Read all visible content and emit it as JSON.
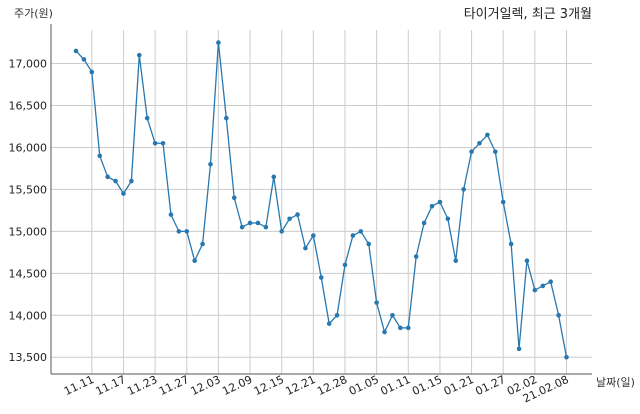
{
  "chart_data": {
    "type": "line",
    "title": "타이거일렉, 최근 3개월",
    "ylabel": "주가(원)",
    "xlabel": "날짜(일)",
    "ylim": [
      13300,
      17400
    ],
    "yticks": [
      13500,
      14000,
      14500,
      15000,
      15500,
      16000,
      16500,
      17000
    ],
    "ytick_labels": [
      "13,500",
      "14,000",
      "14,500",
      "15,000",
      "15,500",
      "16,000",
      "16,500",
      "17,000"
    ],
    "xticks": [
      {
        "index": 2,
        "label": "11.11"
      },
      {
        "index": 6,
        "label": "11.17"
      },
      {
        "index": 10,
        "label": "11.23"
      },
      {
        "index": 14,
        "label": "11.27"
      },
      {
        "index": 18,
        "label": "12.03"
      },
      {
        "index": 22,
        "label": "12.09"
      },
      {
        "index": 26,
        "label": "12.15"
      },
      {
        "index": 30,
        "label": "12.21"
      },
      {
        "index": 34,
        "label": "12.28"
      },
      {
        "index": 38,
        "label": "01.05"
      },
      {
        "index": 42,
        "label": "01.11"
      },
      {
        "index": 46,
        "label": "01.15"
      },
      {
        "index": 50,
        "label": "01.21"
      },
      {
        "index": 54,
        "label": "01.27"
      },
      {
        "index": 58,
        "label": "02.02"
      },
      {
        "index": 62,
        "label": "21.02.08"
      }
    ],
    "grid": true,
    "series": [
      {
        "color": "#2878b0",
        "values": [
          17150,
          17050,
          16900,
          15900,
          15650,
          15600,
          15450,
          15600,
          17100,
          16350,
          16050,
          16050,
          15200,
          15000,
          15000,
          14650,
          14850,
          15800,
          17250,
          16350,
          15400,
          15050,
          15100,
          15100,
          15050,
          15650,
          15000,
          15150,
          15200,
          14800,
          14950,
          14450,
          13900,
          14000,
          14600,
          14950,
          15000,
          14850,
          14150,
          13800,
          14000,
          13850,
          13850,
          14700,
          15100,
          15300,
          15350,
          15150,
          14650,
          15500,
          15950,
          16050,
          16150,
          15950,
          15350,
          14850,
          13600,
          14650,
          14300,
          14350,
          14400,
          14000,
          13500
        ]
      }
    ]
  }
}
